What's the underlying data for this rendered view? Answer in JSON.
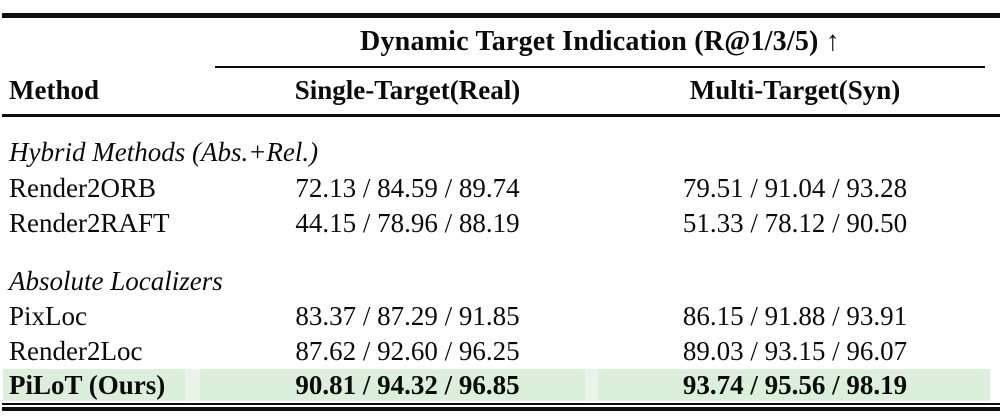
{
  "table": {
    "title": "Dynamic Target Indication (R@1/3/5) ↑",
    "columns": [
      "Method",
      "Single-Target(Real)",
      "Multi-Target(Syn)"
    ],
    "sections": [
      {
        "label": "Hybrid Methods (Abs.+Rel.)",
        "rows": [
          {
            "method": "Render2ORB",
            "single": "72.13 / 84.59 / 89.74",
            "multi": "79.51 / 91.04 / 93.28"
          },
          {
            "method": "Render2RAFT",
            "single": "44.15 / 78.96 / 88.19",
            "multi": "51.33 / 78.12 / 90.50"
          }
        ]
      },
      {
        "label": "Absolute Localizers",
        "rows": [
          {
            "method": "PixLoc",
            "single": "83.37 / 87.29 / 91.85",
            "multi": "86.15 / 91.88 / 93.91"
          },
          {
            "method": "Render2Loc",
            "single": "87.62 / 92.60 / 96.25",
            "multi": "89.03 / 93.15 / 96.07"
          },
          {
            "method": "PiLoT (Ours)",
            "single": "90.81 / 94.32 / 96.85",
            "multi": "93.74 / 95.56 / 98.19"
          }
        ]
      }
    ],
    "highlighted_method": "PiLoT (Ours)",
    "colors": {
      "highlight_row": "#dcefdb",
      "highlight_gap": "#e9f5e8",
      "rule": "#0e0e0e",
      "text": "#0b0b0b",
      "background": "#ffffff"
    }
  }
}
